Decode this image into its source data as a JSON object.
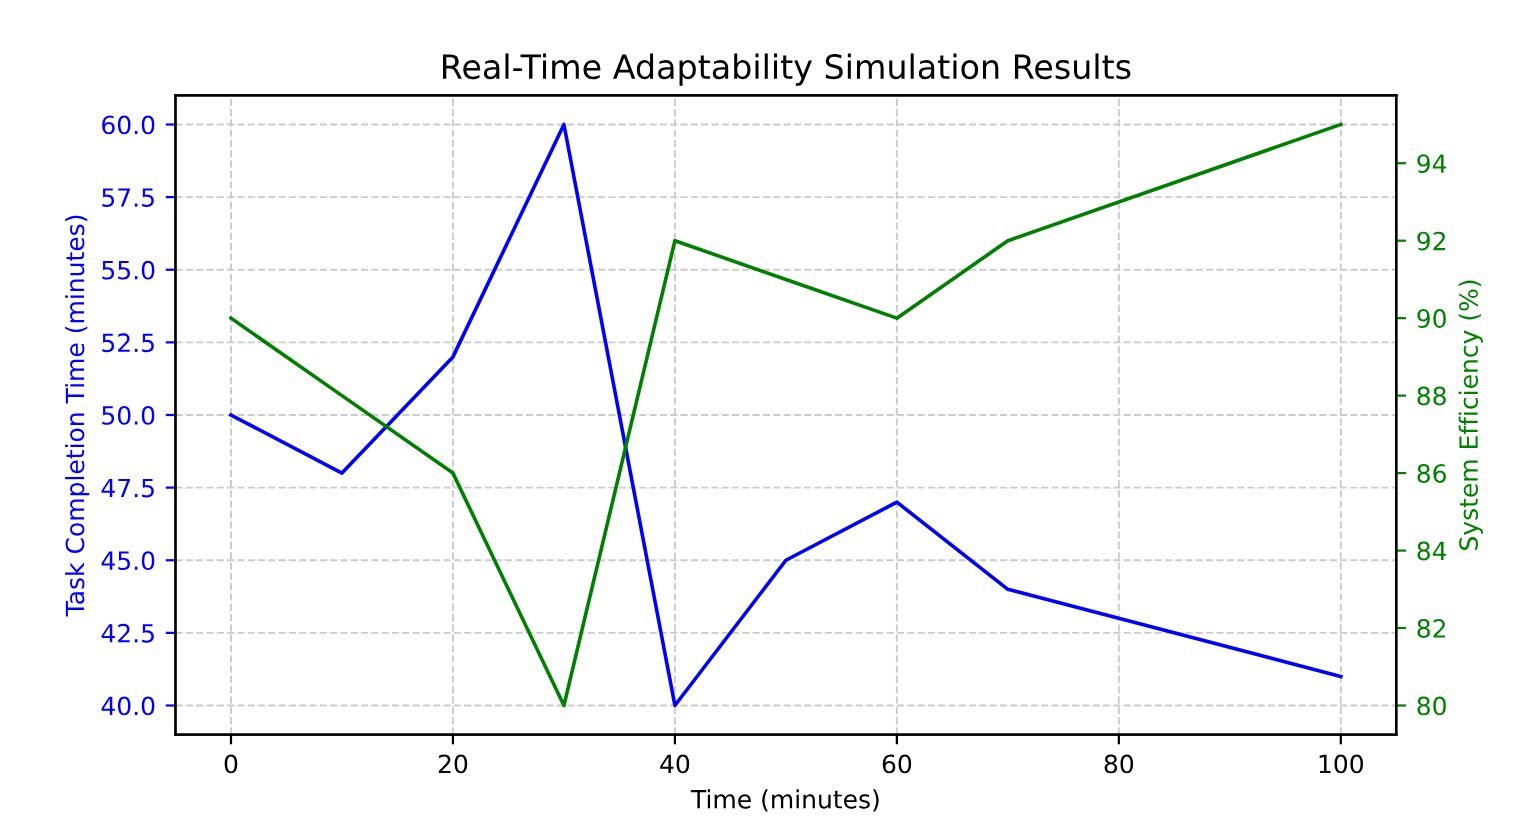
{
  "chart_data": {
    "type": "line",
    "title": "Real-Time Adaptability Simulation Results",
    "xlabel": "Time (minutes)",
    "ylabel": "Task Completion Time (minutes)",
    "y2label": "System Efficiency (%)",
    "series": [
      {
        "color": "#0000ff",
        "x": [
          0,
          10,
          20,
          30,
          40,
          50,
          60,
          70,
          100
        ],
        "values": [
          50,
          48,
          52,
          60,
          40,
          45,
          47,
          44,
          41
        ]
      },
      {
        "color": "#008000",
        "axis": "y2",
        "x": [
          0,
          10,
          20,
          30,
          40,
          50,
          60,
          70,
          100
        ],
        "values": [
          90,
          88,
          86,
          80,
          92,
          91,
          90,
          92,
          95
        ]
      }
    ],
    "xlim": [
      -5,
      105
    ],
    "xticks": [
      0,
      20,
      40,
      60,
      80,
      100
    ],
    "ylim": [
      39,
      61
    ],
    "yticks": [
      {
        "value": 40,
        "label": "40.0"
      },
      {
        "value": 42.5,
        "label": "42.5"
      },
      {
        "value": 45,
        "label": "45.0"
      },
      {
        "value": 47.5,
        "label": "47.5"
      },
      {
        "value": 50,
        "label": "50.0"
      },
      {
        "value": 52.5,
        "label": "52.5"
      },
      {
        "value": 55,
        "label": "55.0"
      },
      {
        "value": 57.5,
        "label": "57.5"
      },
      {
        "value": 60,
        "label": "60.0"
      }
    ],
    "y2lim": [
      79.25,
      95.75
    ],
    "y2ticks": [
      80,
      82,
      84,
      86,
      88,
      90,
      92,
      94
    ],
    "grid": true,
    "line_style": "solid",
    "marker": "none"
  }
}
